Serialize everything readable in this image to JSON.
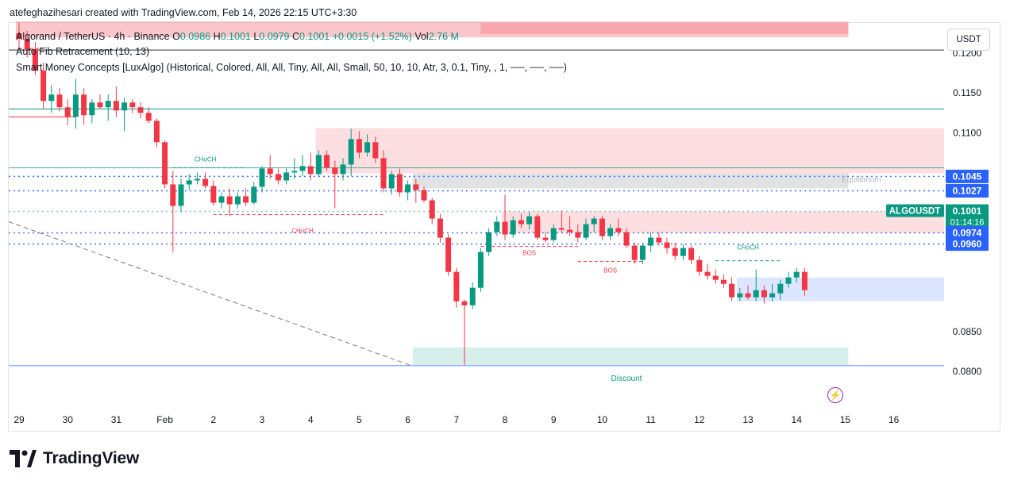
{
  "credit": "atefeghazihesari created with TradingView.com, Feb 14, 2026 22:15 UTC+3:30",
  "legend": {
    "symbol": "Algorand / TetherUS · 4h · Binance",
    "o_label": "O",
    "o": "0.0986",
    "h_label": "H",
    "h": "0.1001",
    "l_label": "L",
    "l": "0.0979",
    "c_label": "C",
    "c": "0.1001",
    "change": "+0.0015 (+1.52%)",
    "vol_label": "Vol",
    "vol": "2.76 M",
    "indicator1": "Auto Fib Retracement (10, 13)",
    "indicator2": "Smart Money Concepts [LuxAlgo] (Historical, Colored, All, All, Tiny, All, All, Small, 50, 10, 10, Atr, 3, 0.1, Tiny, , 1, ──, ──, ──)"
  },
  "currency_button": "USDT",
  "brand": "TradingView",
  "colors": {
    "up": "#089981",
    "down": "#f23645",
    "blue": "#2962ff",
    "purple": "#9c27b0"
  },
  "chart_data": {
    "type": "candlestick",
    "symbol": "ALGOUSDT",
    "interval": "4h",
    "yrange": [
      0.0758,
      0.1238
    ],
    "y_ticks": [
      "0.1200",
      "0.1150",
      "0.1100",
      "0.0850",
      "0.0800"
    ],
    "x_ticks": [
      "29",
      "30",
      "31",
      "Feb",
      "2",
      "3",
      "4",
      "5",
      "6",
      "7",
      "8",
      "9",
      "10",
      "11",
      "12",
      "13",
      "14",
      "15",
      "16"
    ],
    "x_tick_bars": [
      0,
      6,
      12,
      18,
      24,
      30,
      36,
      42,
      48,
      54,
      60,
      66,
      72,
      78,
      84,
      90,
      96,
      102,
      108
    ],
    "price_labels": [
      {
        "value": 0.1045,
        "text": "0.1045",
        "color": "#2962ff"
      },
      {
        "value": 0.1027,
        "text": "0.1027",
        "color": "#2962ff"
      },
      {
        "value": 0.1001,
        "text": "0.1001",
        "color": "#089981",
        "symbol": "ALGOUSDT",
        "countdown": "01:14:16"
      },
      {
        "value": 0.0974,
        "text": "0.0974",
        "color": "#2962ff"
      },
      {
        "value": 0.096,
        "text": "0.0960",
        "color": "#2962ff"
      }
    ],
    "annotations": [
      {
        "text": "CHoCH",
        "bar": 23,
        "price": 0.1064,
        "color": "#089981"
      },
      {
        "text": "CHoCH",
        "bar": 35,
        "price": 0.0974,
        "color": "#f23645"
      },
      {
        "text": "BOS",
        "bar": 63,
        "price": 0.0946,
        "color": "#f23645"
      },
      {
        "text": "BOS",
        "bar": 73,
        "price": 0.0924,
        "color": "#f23645"
      },
      {
        "text": "CHoCH",
        "bar": 90,
        "price": 0.0953,
        "color": "#089981"
      },
      {
        "text": "Equilibrium",
        "bar": 104,
        "price": 0.1038,
        "color": "#b2b5be"
      },
      {
        "text": "Discount",
        "bar": 75,
        "price": 0.0788,
        "color": "#089981"
      }
    ],
    "zones": [
      {
        "name": "premium",
        "bar_from": 0,
        "bar_to": 102,
        "price_from": 0.122,
        "price_to": 0.124,
        "color": "#f23645"
      },
      {
        "name": "supply-zone",
        "bar_from": 37,
        "bar_to": 115,
        "price_from": 0.1049,
        "price_to": 0.1106,
        "color": "#f23645"
      },
      {
        "name": "equilibrium-zone",
        "bar_from": 49,
        "bar_to": 102,
        "price_from": 0.103,
        "price_to": 0.1049,
        "color": "#787b86"
      },
      {
        "name": "order-block-bearish",
        "bar_from": 60,
        "bar_to": 115,
        "price_from": 0.0974,
        "price_to": 0.1001,
        "color": "#f23645"
      },
      {
        "name": "demand-zone",
        "bar_from": 89,
        "bar_to": 115,
        "price_from": 0.0888,
        "price_to": 0.0918,
        "color": "#2962ff"
      },
      {
        "name": "discount-zone",
        "bar_from": 49,
        "bar_to": 102,
        "price_from": 0.0808,
        "price_to": 0.083,
        "color": "#089981"
      }
    ],
    "candles": [
      {
        "o": 0.1225,
        "h": 0.1238,
        "l": 0.1205,
        "c": 0.1218
      },
      {
        "o": 0.1218,
        "h": 0.1228,
        "l": 0.1195,
        "c": 0.1205
      },
      {
        "o": 0.1205,
        "h": 0.1214,
        "l": 0.1172,
        "c": 0.1178
      },
      {
        "o": 0.1178,
        "h": 0.1188,
        "l": 0.113,
        "c": 0.114
      },
      {
        "o": 0.114,
        "h": 0.116,
        "l": 0.1125,
        "c": 0.1148
      },
      {
        "o": 0.1148,
        "h": 0.1156,
        "l": 0.1127,
        "c": 0.1132
      },
      {
        "o": 0.1132,
        "h": 0.1142,
        "l": 0.111,
        "c": 0.112
      },
      {
        "o": 0.112,
        "h": 0.1168,
        "l": 0.1105,
        "c": 0.1148
      },
      {
        "o": 0.1148,
        "h": 0.1156,
        "l": 0.111,
        "c": 0.1122
      },
      {
        "o": 0.1122,
        "h": 0.1142,
        "l": 0.1112,
        "c": 0.1138
      },
      {
        "o": 0.1138,
        "h": 0.1148,
        "l": 0.113,
        "c": 0.1132
      },
      {
        "o": 0.1132,
        "h": 0.1148,
        "l": 0.1115,
        "c": 0.114
      },
      {
        "o": 0.114,
        "h": 0.1158,
        "l": 0.112,
        "c": 0.1128
      },
      {
        "o": 0.1128,
        "h": 0.1144,
        "l": 0.1102,
        "c": 0.1138
      },
      {
        "o": 0.1138,
        "h": 0.1142,
        "l": 0.1125,
        "c": 0.1132
      },
      {
        "o": 0.1132,
        "h": 0.1138,
        "l": 0.1118,
        "c": 0.1125
      },
      {
        "o": 0.1125,
        "h": 0.1132,
        "l": 0.1112,
        "c": 0.1115
      },
      {
        "o": 0.1115,
        "h": 0.1118,
        "l": 0.1082,
        "c": 0.1088
      },
      {
        "o": 0.1088,
        "h": 0.109,
        "l": 0.103,
        "c": 0.1035
      },
      {
        "o": 0.1035,
        "h": 0.1052,
        "l": 0.095,
        "c": 0.1008
      },
      {
        "o": 0.1008,
        "h": 0.1042,
        "l": 0.1,
        "c": 0.1035
      },
      {
        "o": 0.1035,
        "h": 0.1048,
        "l": 0.1028,
        "c": 0.104
      },
      {
        "o": 0.104,
        "h": 0.105,
        "l": 0.1035,
        "c": 0.1042
      },
      {
        "o": 0.1042,
        "h": 0.105,
        "l": 0.103,
        "c": 0.1033
      },
      {
        "o": 0.1033,
        "h": 0.104,
        "l": 0.1008,
        "c": 0.1012
      },
      {
        "o": 0.1012,
        "h": 0.1025,
        "l": 0.1005,
        "c": 0.102
      },
      {
        "o": 0.102,
        "h": 0.103,
        "l": 0.0995,
        "c": 0.101
      },
      {
        "o": 0.101,
        "h": 0.1025,
        "l": 0.1005,
        "c": 0.102
      },
      {
        "o": 0.102,
        "h": 0.103,
        "l": 0.1008,
        "c": 0.1012
      },
      {
        "o": 0.1012,
        "h": 0.1038,
        "l": 0.101,
        "c": 0.1032
      },
      {
        "o": 0.1032,
        "h": 0.1058,
        "l": 0.1025,
        "c": 0.1055
      },
      {
        "o": 0.1055,
        "h": 0.1072,
        "l": 0.1042,
        "c": 0.1048
      },
      {
        "o": 0.1048,
        "h": 0.1055,
        "l": 0.1035,
        "c": 0.104
      },
      {
        "o": 0.104,
        "h": 0.1055,
        "l": 0.1035,
        "c": 0.105
      },
      {
        "o": 0.105,
        "h": 0.1068,
        "l": 0.1042,
        "c": 0.1052
      },
      {
        "o": 0.1052,
        "h": 0.1072,
        "l": 0.1045,
        "c": 0.1058
      },
      {
        "o": 0.1058,
        "h": 0.1075,
        "l": 0.104,
        "c": 0.1048
      },
      {
        "o": 0.1048,
        "h": 0.1078,
        "l": 0.1045,
        "c": 0.1072
      },
      {
        "o": 0.1072,
        "h": 0.1078,
        "l": 0.1052,
        "c": 0.1056
      },
      {
        "o": 0.1056,
        "h": 0.1065,
        "l": 0.1005,
        "c": 0.1048
      },
      {
        "o": 0.1048,
        "h": 0.1068,
        "l": 0.104,
        "c": 0.106
      },
      {
        "o": 0.106,
        "h": 0.1105,
        "l": 0.1045,
        "c": 0.1092
      },
      {
        "o": 0.1092,
        "h": 0.1102,
        "l": 0.1068,
        "c": 0.1075
      },
      {
        "o": 0.1075,
        "h": 0.1098,
        "l": 0.107,
        "c": 0.1088
      },
      {
        "o": 0.1088,
        "h": 0.1095,
        "l": 0.1062,
        "c": 0.1068
      },
      {
        "o": 0.1068,
        "h": 0.1078,
        "l": 0.1025,
        "c": 0.103
      },
      {
        "o": 0.103,
        "h": 0.1052,
        "l": 0.1022,
        "c": 0.1048
      },
      {
        "o": 0.1048,
        "h": 0.1055,
        "l": 0.102,
        "c": 0.1025
      },
      {
        "o": 0.1025,
        "h": 0.104,
        "l": 0.1015,
        "c": 0.1035
      },
      {
        "o": 0.1035,
        "h": 0.1042,
        "l": 0.1012,
        "c": 0.1028
      },
      {
        "o": 0.1028,
        "h": 0.1032,
        "l": 0.1012,
        "c": 0.1015
      },
      {
        "o": 0.1015,
        "h": 0.1018,
        "l": 0.0985,
        "c": 0.0992
      },
      {
        "o": 0.0992,
        "h": 0.0998,
        "l": 0.0962,
        "c": 0.0968
      },
      {
        "o": 0.0968,
        "h": 0.0972,
        "l": 0.092,
        "c": 0.0925
      },
      {
        "o": 0.0925,
        "h": 0.093,
        "l": 0.088,
        "c": 0.0888
      },
      {
        "o": 0.0888,
        "h": 0.089,
        "l": 0.0808,
        "c": 0.0883
      },
      {
        "o": 0.0883,
        "h": 0.0912,
        "l": 0.0878,
        "c": 0.0905
      },
      {
        "o": 0.0905,
        "h": 0.0955,
        "l": 0.09,
        "c": 0.095
      },
      {
        "o": 0.095,
        "h": 0.098,
        "l": 0.0945,
        "c": 0.0975
      },
      {
        "o": 0.0975,
        "h": 0.0995,
        "l": 0.097,
        "c": 0.0988
      },
      {
        "o": 0.0988,
        "h": 0.1022,
        "l": 0.0965,
        "c": 0.0972
      },
      {
        "o": 0.0972,
        "h": 0.0995,
        "l": 0.0968,
        "c": 0.099
      },
      {
        "o": 0.099,
        "h": 0.0998,
        "l": 0.098,
        "c": 0.0985
      },
      {
        "o": 0.0985,
        "h": 0.1,
        "l": 0.0978,
        "c": 0.0995
      },
      {
        "o": 0.0995,
        "h": 0.0998,
        "l": 0.0965,
        "c": 0.0968
      },
      {
        "o": 0.0968,
        "h": 0.0975,
        "l": 0.0962,
        "c": 0.0965
      },
      {
        "o": 0.0965,
        "h": 0.0985,
        "l": 0.0962,
        "c": 0.098
      },
      {
        "o": 0.098,
        "h": 0.1002,
        "l": 0.0975,
        "c": 0.0978
      },
      {
        "o": 0.0978,
        "h": 0.0995,
        "l": 0.097,
        "c": 0.0975
      },
      {
        "o": 0.0975,
        "h": 0.0985,
        "l": 0.0962,
        "c": 0.0968
      },
      {
        "o": 0.0968,
        "h": 0.0992,
        "l": 0.0965,
        "c": 0.0985
      },
      {
        "o": 0.0985,
        "h": 0.0995,
        "l": 0.0975,
        "c": 0.0992
      },
      {
        "o": 0.0992,
        "h": 0.0995,
        "l": 0.0965,
        "c": 0.097
      },
      {
        "o": 0.097,
        "h": 0.0985,
        "l": 0.0965,
        "c": 0.098
      },
      {
        "o": 0.098,
        "h": 0.0992,
        "l": 0.097,
        "c": 0.0975
      },
      {
        "o": 0.0975,
        "h": 0.098,
        "l": 0.0955,
        "c": 0.0958
      },
      {
        "o": 0.0958,
        "h": 0.0962,
        "l": 0.0935,
        "c": 0.094
      },
      {
        "o": 0.094,
        "h": 0.0962,
        "l": 0.0935,
        "c": 0.0958
      },
      {
        "o": 0.0958,
        "h": 0.0975,
        "l": 0.095,
        "c": 0.0968
      },
      {
        "o": 0.0968,
        "h": 0.0975,
        "l": 0.0958,
        "c": 0.0962
      },
      {
        "o": 0.0962,
        "h": 0.0968,
        "l": 0.0948,
        "c": 0.0955
      },
      {
        "o": 0.0955,
        "h": 0.0962,
        "l": 0.094,
        "c": 0.0945
      },
      {
        "o": 0.0945,
        "h": 0.096,
        "l": 0.094,
        "c": 0.0955
      },
      {
        "o": 0.0955,
        "h": 0.0958,
        "l": 0.0935,
        "c": 0.094
      },
      {
        "o": 0.094,
        "h": 0.0945,
        "l": 0.092,
        "c": 0.0925
      },
      {
        "o": 0.0925,
        "h": 0.0935,
        "l": 0.0915,
        "c": 0.092
      },
      {
        "o": 0.092,
        "h": 0.0928,
        "l": 0.091,
        "c": 0.0915
      },
      {
        "o": 0.0915,
        "h": 0.0922,
        "l": 0.0905,
        "c": 0.091
      },
      {
        "o": 0.091,
        "h": 0.0918,
        "l": 0.0888,
        "c": 0.0893
      },
      {
        "o": 0.0893,
        "h": 0.0905,
        "l": 0.0888,
        "c": 0.0898
      },
      {
        "o": 0.0898,
        "h": 0.0908,
        "l": 0.089,
        "c": 0.0893
      },
      {
        "o": 0.0893,
        "h": 0.0928,
        "l": 0.0888,
        "c": 0.0902
      },
      {
        "o": 0.0902,
        "h": 0.0908,
        "l": 0.0885,
        "c": 0.0893
      },
      {
        "o": 0.0893,
        "h": 0.091,
        "l": 0.0888,
        "c": 0.0898
      },
      {
        "o": 0.0898,
        "h": 0.0915,
        "l": 0.089,
        "c": 0.091
      },
      {
        "o": 0.091,
        "h": 0.0925,
        "l": 0.0905,
        "c": 0.0918
      },
      {
        "o": 0.0918,
        "h": 0.093,
        "l": 0.0912,
        "c": 0.0925
      },
      {
        "o": 0.0925,
        "h": 0.093,
        "l": 0.0895,
        "c": 0.0902
      }
    ]
  }
}
